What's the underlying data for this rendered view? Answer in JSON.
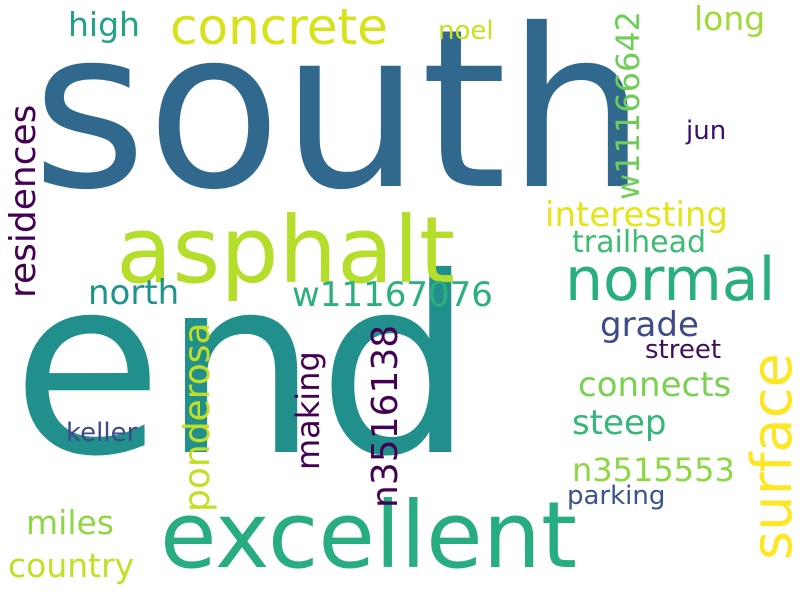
{
  "words": [
    {
      "text": "south",
      "color": "#31688e",
      "vertical": false
    },
    {
      "text": "end",
      "color": "#21908d",
      "vertical": false
    },
    {
      "text": "asphalt",
      "color": "#b5de2b",
      "vertical": false
    },
    {
      "text": "excellent",
      "color": "#27ad81",
      "vertical": false
    },
    {
      "text": "concrete",
      "color": "#d8e219",
      "vertical": false
    },
    {
      "text": "normal",
      "color": "#29af7f",
      "vertical": false
    },
    {
      "text": "surface",
      "color": "#fde725",
      "vertical": true
    },
    {
      "text": "high",
      "color": "#20a386",
      "vertical": false
    },
    {
      "text": "noel",
      "color": "#c8e020",
      "vertical": false
    },
    {
      "text": "long",
      "color": "#a0da39",
      "vertical": false
    },
    {
      "text": "w11166642",
      "color": "#6ece58",
      "vertical": true
    },
    {
      "text": "residences",
      "color": "#440154",
      "vertical": true
    },
    {
      "text": "jun",
      "color": "#3b0f70",
      "vertical": false
    },
    {
      "text": "interesting",
      "color": "#e5e419",
      "vertical": false
    },
    {
      "text": "trailhead",
      "color": "#3dbc74",
      "vertical": false
    },
    {
      "text": "north",
      "color": "#1f948c",
      "vertical": false
    },
    {
      "text": "w11167076",
      "color": "#2ab07f",
      "vertical": false
    },
    {
      "text": "ponderosa",
      "color": "#c2df23",
      "vertical": true
    },
    {
      "text": "grade",
      "color": "#3e4a89",
      "vertical": false
    },
    {
      "text": "street",
      "color": "#3f0f5d",
      "vertical": false
    },
    {
      "text": "n3516138",
      "color": "#440154",
      "vertical": true
    },
    {
      "text": "making",
      "color": "#440154",
      "vertical": true
    },
    {
      "text": "connects",
      "color": "#7ad151",
      "vertical": false
    },
    {
      "text": "steep",
      "color": "#35b779",
      "vertical": false
    },
    {
      "text": "keller",
      "color": "#3e4989",
      "vertical": false
    },
    {
      "text": "n3515553",
      "color": "#8ed645",
      "vertical": false
    },
    {
      "text": "parking",
      "color": "#3a548c",
      "vertical": false
    },
    {
      "text": "miles",
      "color": "#8fd744",
      "vertical": false
    },
    {
      "text": "country",
      "color": "#c2df23",
      "vertical": false
    }
  ]
}
